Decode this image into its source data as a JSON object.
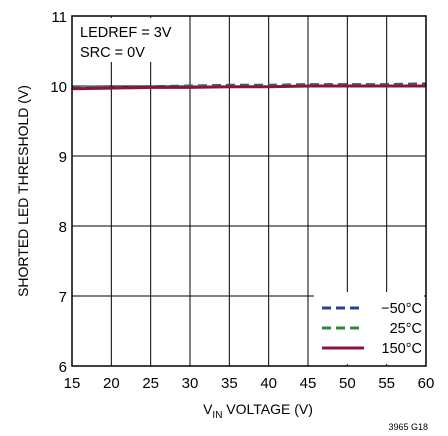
{
  "chart_data": {
    "type": "line",
    "xlabel_main": "V",
    "xlabel_sub": "IN",
    "xlabel_rest": " VOLTAGE (V)",
    "ylabel": "SHORTED LED THRESHOLD (V)",
    "xlim": [
      15,
      60
    ],
    "ylim": [
      6,
      11
    ],
    "xticks": [
      "15",
      "20",
      "25",
      "30",
      "35",
      "40",
      "45",
      "50",
      "55",
      "60"
    ],
    "yticks": [
      "6",
      "7",
      "8",
      "9",
      "10",
      "11"
    ],
    "grid": true,
    "annotations": [
      "LEDREF = 3V",
      "SRC = 0V"
    ],
    "legend_position": "bottom-right",
    "figure_id": "3965 G18",
    "series": [
      {
        "name": "−50°C",
        "color": "#2b3f9a",
        "dash": "dashed",
        "x": [
          15,
          20,
          25,
          30,
          35,
          40,
          45,
          50,
          55,
          60
        ],
        "y": [
          9.98,
          9.99,
          9.99,
          10.0,
          10.01,
          10.01,
          10.02,
          10.02,
          10.02,
          10.03
        ]
      },
      {
        "name": "25°C",
        "color": "#2f8a3a",
        "dash": "dashed",
        "x": [
          15,
          20,
          25,
          30,
          35,
          40,
          45,
          50,
          55,
          60
        ],
        "y": [
          9.97,
          9.98,
          9.98,
          9.99,
          10.0,
          10.0,
          10.01,
          10.01,
          10.01,
          10.01
        ]
      },
      {
        "name": "150°C",
        "color": "#8b1538",
        "dash": "solid",
        "x": [
          15,
          20,
          25,
          30,
          35,
          40,
          45,
          50,
          55,
          60
        ],
        "y": [
          9.96,
          9.97,
          9.98,
          9.98,
          9.99,
          9.99,
          10.0,
          10.0,
          10.0,
          10.0
        ]
      }
    ]
  }
}
